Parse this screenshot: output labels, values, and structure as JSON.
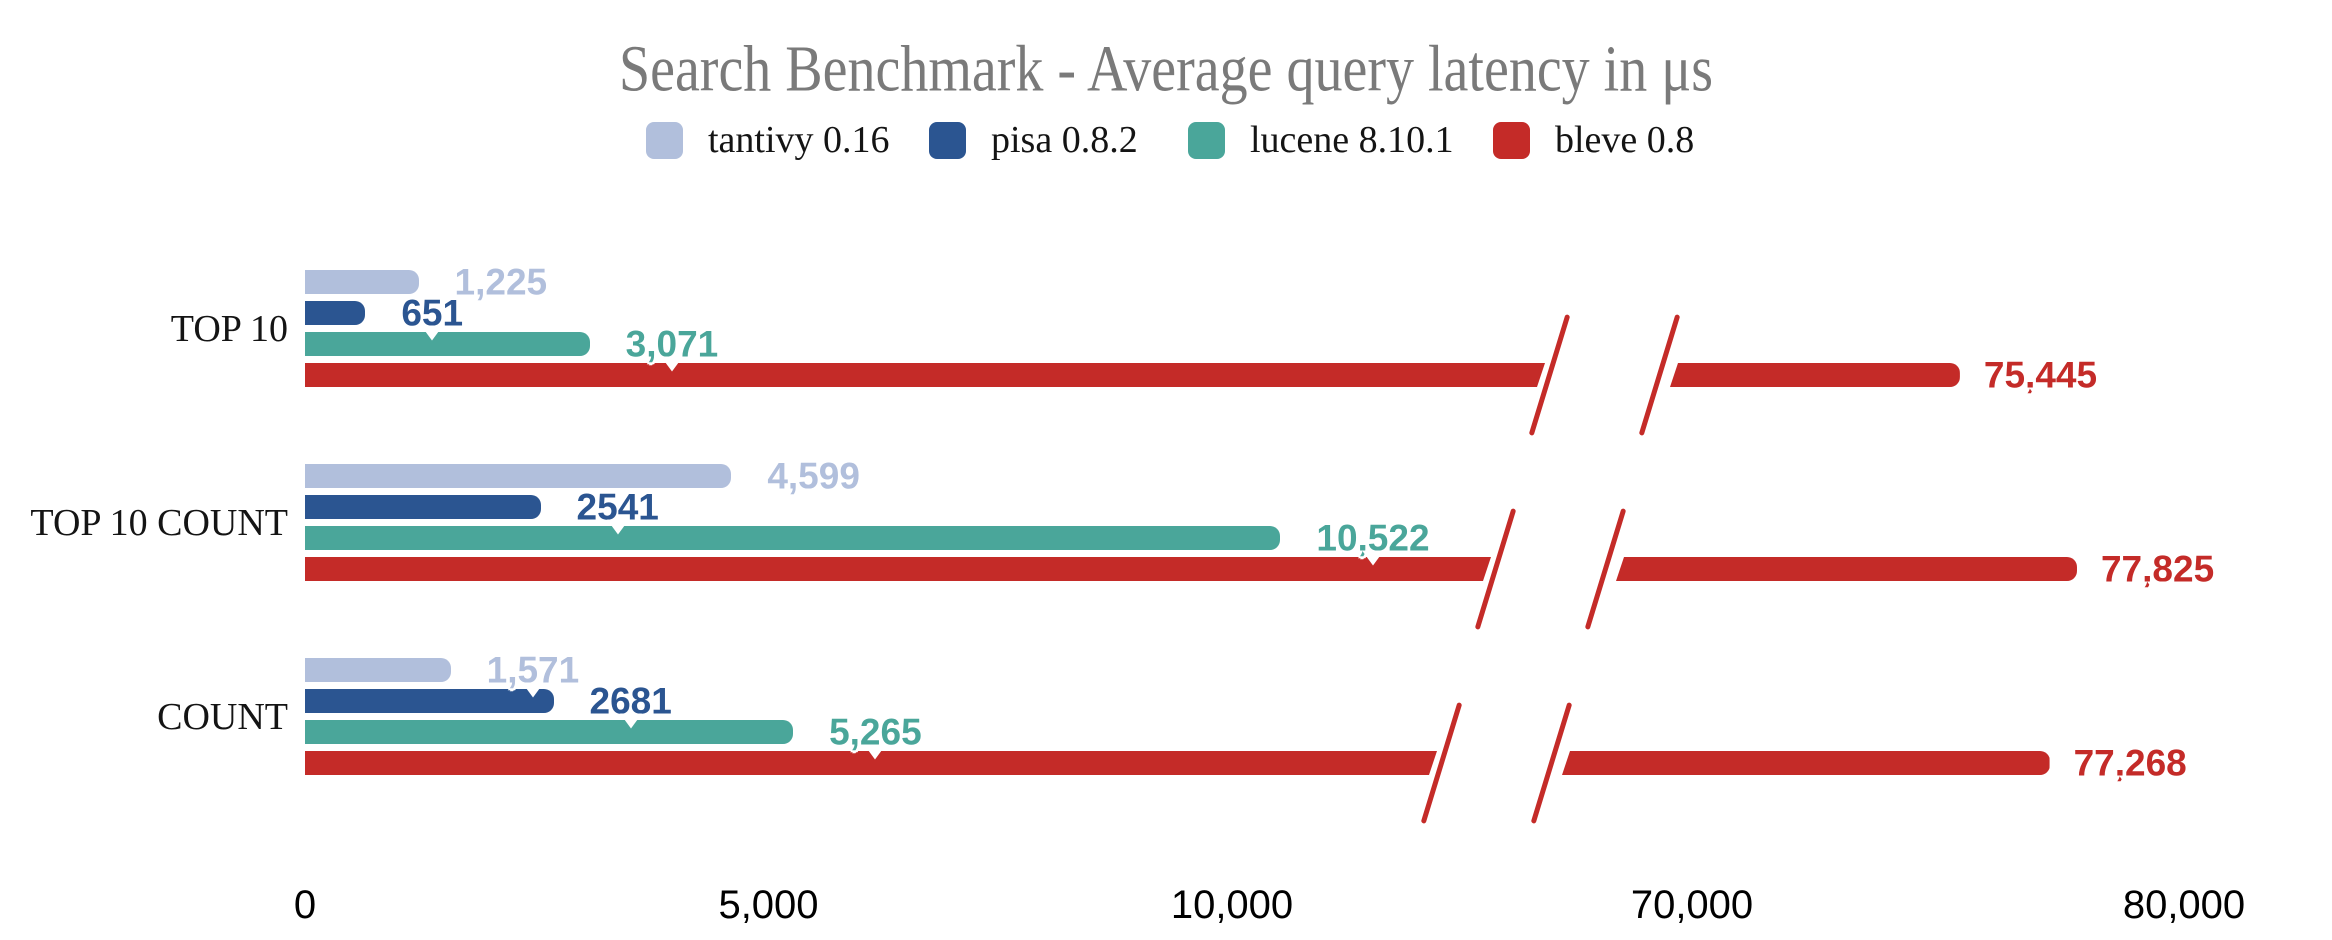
{
  "title": "Search Benchmark - Average query latency in μs",
  "chart_data": {
    "type": "bar",
    "orientation": "horizontal",
    "title": "Search Benchmark - Average query latency in μs",
    "categories": [
      "TOP 10",
      "TOP 10 COUNT",
      "COUNT"
    ],
    "series": [
      {
        "name": "tantivy 0.16",
        "color": "#b1bfdc",
        "values": [
          1225,
          4599,
          1571
        ],
        "display_labels": [
          "1,225",
          "4,599",
          "1,571"
        ]
      },
      {
        "name": "pisa 0.8.2",
        "color": "#2b5591",
        "values": [
          651,
          2541,
          2681
        ],
        "display_labels": [
          "651",
          "2541",
          "2681"
        ]
      },
      {
        "name": "lucene 8.10.1",
        "color": "#4aa69a",
        "values": [
          3071,
          10522,
          5265
        ],
        "display_labels": [
          "3,071",
          "10,522",
          "5,265"
        ]
      },
      {
        "name": "bleve 0.8",
        "color": "#c42b28",
        "values": [
          75445,
          77825,
          77268
        ],
        "display_labels": [
          "75,445",
          "77,825",
          "77,268"
        ]
      }
    ],
    "xlabel": "",
    "ylabel": "",
    "x_axis": {
      "ticks": [
        {
          "label": "0",
          "value": 0
        },
        {
          "label": "5,000",
          "value": 5000
        },
        {
          "label": "10,000",
          "value": 10000
        },
        {
          "label": "70,000",
          "value": 70000
        },
        {
          "label": "80,000",
          "value": 80000
        }
      ],
      "broken": true,
      "break_between": [
        13000,
        69000
      ]
    },
    "legend_position": "top",
    "grid": false,
    "value_labels_shown": true
  },
  "colors": {
    "title_text": "#7a7a7a",
    "axis_text": "#000000",
    "category_text": "#141414",
    "legend_text": "#141414",
    "background": "#ffffff"
  }
}
